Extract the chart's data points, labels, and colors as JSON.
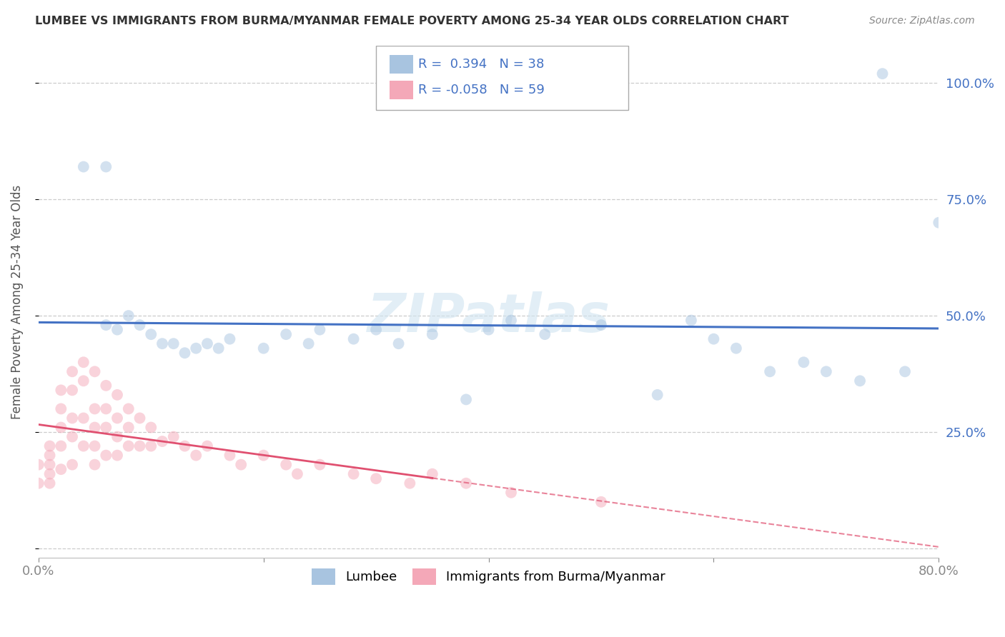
{
  "title": "LUMBEE VS IMMIGRANTS FROM BURMA/MYANMAR FEMALE POVERTY AMONG 25-34 YEAR OLDS CORRELATION CHART",
  "source": "Source: ZipAtlas.com",
  "ylabel": "Female Poverty Among 25-34 Year Olds",
  "lumbee_R": 0.394,
  "lumbee_N": 38,
  "burma_R": -0.058,
  "burma_N": 59,
  "lumbee_color": "#a8c4e0",
  "burma_color": "#f4a8b8",
  "lumbee_line_color": "#4472c4",
  "burma_line_color": "#e05070",
  "xlim": [
    0.0,
    0.8
  ],
  "ylim": [
    -0.02,
    1.08
  ],
  "lumbee_x": [
    0.04,
    0.06,
    0.06,
    0.07,
    0.08,
    0.09,
    0.1,
    0.11,
    0.12,
    0.13,
    0.14,
    0.15,
    0.16,
    0.17,
    0.2,
    0.22,
    0.24,
    0.25,
    0.28,
    0.3,
    0.32,
    0.35,
    0.38,
    0.4,
    0.42,
    0.45,
    0.5,
    0.55,
    0.58,
    0.6,
    0.62,
    0.65,
    0.68,
    0.7,
    0.73,
    0.75,
    0.77,
    0.8
  ],
  "lumbee_y": [
    0.82,
    0.82,
    0.48,
    0.47,
    0.5,
    0.48,
    0.46,
    0.44,
    0.44,
    0.42,
    0.43,
    0.44,
    0.43,
    0.45,
    0.43,
    0.46,
    0.44,
    0.47,
    0.45,
    0.47,
    0.44,
    0.46,
    0.32,
    0.47,
    0.49,
    0.46,
    0.48,
    0.33,
    0.49,
    0.45,
    0.43,
    0.38,
    0.4,
    0.38,
    0.36,
    1.02,
    0.38,
    0.7
  ],
  "burma_x": [
    0.0,
    0.0,
    0.01,
    0.01,
    0.01,
    0.01,
    0.01,
    0.02,
    0.02,
    0.02,
    0.02,
    0.02,
    0.03,
    0.03,
    0.03,
    0.03,
    0.03,
    0.04,
    0.04,
    0.04,
    0.04,
    0.05,
    0.05,
    0.05,
    0.05,
    0.05,
    0.06,
    0.06,
    0.06,
    0.06,
    0.07,
    0.07,
    0.07,
    0.07,
    0.08,
    0.08,
    0.08,
    0.09,
    0.09,
    0.1,
    0.1,
    0.11,
    0.12,
    0.13,
    0.14,
    0.15,
    0.17,
    0.18,
    0.2,
    0.22,
    0.23,
    0.25,
    0.28,
    0.3,
    0.33,
    0.35,
    0.38,
    0.42,
    0.5
  ],
  "burma_y": [
    0.18,
    0.14,
    0.22,
    0.2,
    0.18,
    0.16,
    0.14,
    0.34,
    0.3,
    0.26,
    0.22,
    0.17,
    0.38,
    0.34,
    0.28,
    0.24,
    0.18,
    0.4,
    0.36,
    0.28,
    0.22,
    0.38,
    0.3,
    0.26,
    0.22,
    0.18,
    0.35,
    0.3,
    0.26,
    0.2,
    0.33,
    0.28,
    0.24,
    0.2,
    0.3,
    0.26,
    0.22,
    0.28,
    0.22,
    0.26,
    0.22,
    0.23,
    0.24,
    0.22,
    0.2,
    0.22,
    0.2,
    0.18,
    0.2,
    0.18,
    0.16,
    0.18,
    0.16,
    0.15,
    0.14,
    0.16,
    0.14,
    0.12,
    0.1
  ],
  "ytick_vals": [
    0.0,
    0.25,
    0.5,
    0.75,
    1.0
  ],
  "ytick_labels_right": [
    "",
    "25.0%",
    "50.0%",
    "75.0%",
    "100.0%"
  ],
  "xtick_vals": [
    0.0,
    0.2,
    0.4,
    0.6,
    0.8
  ],
  "xtick_labels": [
    "0.0%",
    "",
    "",
    "",
    "80.0%"
  ],
  "background_color": "#ffffff",
  "grid_color": "#cccccc",
  "title_color": "#333333",
  "label_color": "#555555",
  "stat_color": "#4472c4",
  "marker_size": 130,
  "marker_alpha": 0.5,
  "watermark_color": "#d0e4f0",
  "watermark_alpha": 0.6
}
